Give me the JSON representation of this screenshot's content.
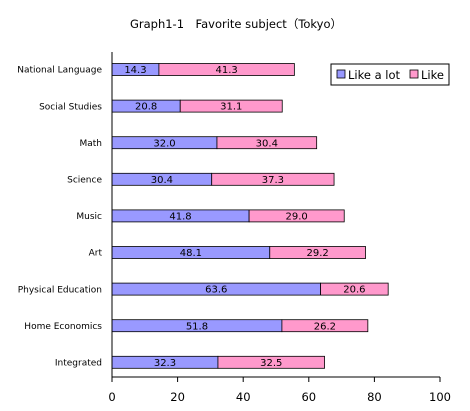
{
  "chart_data": {
    "type": "bar",
    "orientation": "horizontal",
    "stacked": true,
    "title": "Graph1-1　Favorite subject（Tokyo）",
    "categories": [
      "National Language",
      "Social Studies",
      "Math",
      "Science",
      "Music",
      "Art",
      "Physical Education",
      "Home Economics",
      "Integrated"
    ],
    "series": [
      {
        "name": "Like a lot",
        "color": "#9999ff",
        "values": [
          14.3,
          20.8,
          32.0,
          30.4,
          41.8,
          48.1,
          63.6,
          51.8,
          32.3
        ]
      },
      {
        "name": "Like",
        "color": "#ff99cc",
        "values": [
          41.3,
          31.1,
          30.4,
          37.3,
          29.0,
          29.2,
          20.6,
          26.2,
          32.5
        ]
      }
    ],
    "xlim": [
      0,
      100
    ],
    "xticks": [
      "0",
      "20",
      "40",
      "60",
      "80",
      "100"
    ],
    "value_format": "one-decimal",
    "grid": false,
    "legend": "top-right"
  }
}
